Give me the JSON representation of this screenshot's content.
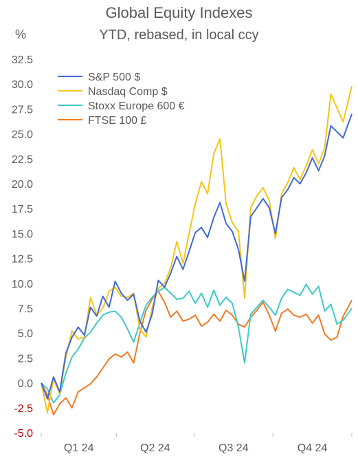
{
  "chart_data": {
    "type": "line",
    "title": "Global Equity Indexes",
    "subtitle": "YTD, rebased, in local ccy",
    "ylabel": "%",
    "ylim": [
      -5,
      32.5
    ],
    "y_ticks": [
      "32.5",
      "30.0",
      "27.5",
      "25.0",
      "22.5",
      "20.0",
      "17.5",
      "15.0",
      "12.5",
      "10.0",
      "7.5",
      "5.0",
      "2.5",
      "0.0",
      "-2.5",
      "-5.0"
    ],
    "y_tick_values": [
      32.5,
      30,
      27.5,
      25,
      22.5,
      20,
      17.5,
      15,
      12.5,
      10,
      7.5,
      5,
      2.5,
      0,
      -2.5,
      -5
    ],
    "negative_tick_color": "#c00000",
    "tick_color": "#595959",
    "x_categories": [
      "Q1 24",
      "Q2 24",
      "Q3 24",
      "Q4 24"
    ],
    "xlim": [
      0,
      252
    ],
    "x_unit": "trading day of 2024",
    "legend_position": "top-left",
    "series": [
      {
        "name": "S&P 500 $",
        "color": "#4169d6",
        "x": [
          0,
          5,
          10,
          15,
          20,
          25,
          30,
          35,
          40,
          45,
          50,
          55,
          60,
          65,
          70,
          75,
          80,
          85,
          90,
          95,
          100,
          105,
          110,
          115,
          120,
          125,
          130,
          135,
          140,
          145,
          150,
          155,
          160,
          165,
          170,
          175,
          180,
          185,
          190,
          195,
          200,
          205,
          210,
          215,
          220,
          225,
          230,
          235,
          240,
          245,
          252
        ],
        "values": [
          0.0,
          -1.6,
          0.6,
          -0.9,
          3.0,
          4.6,
          5.6,
          4.8,
          7.6,
          6.7,
          8.7,
          7.6,
          10.2,
          9.0,
          8.3,
          8.9,
          6.2,
          5.1,
          6.9,
          10.3,
          9.6,
          11.0,
          12.7,
          11.4,
          13.2,
          15.1,
          15.6,
          14.6,
          16.6,
          18.1,
          16.0,
          15.2,
          13.4,
          10.2,
          16.7,
          17.6,
          18.5,
          17.6,
          15.0,
          18.6,
          19.4,
          20.6,
          20.0,
          21.1,
          22.6,
          21.3,
          22.8,
          25.8,
          25.2,
          24.6,
          27.0
        ]
      },
      {
        "name": "Nasdaq Comp $",
        "color": "#f5c518",
        "x": [
          0,
          5,
          10,
          15,
          20,
          25,
          30,
          35,
          40,
          45,
          50,
          55,
          60,
          65,
          70,
          75,
          80,
          85,
          90,
          95,
          100,
          105,
          110,
          115,
          120,
          125,
          130,
          135,
          140,
          145,
          150,
          155,
          160,
          165,
          170,
          175,
          180,
          185,
          190,
          195,
          200,
          205,
          210,
          215,
          220,
          225,
          230,
          235,
          240,
          245,
          252
        ],
        "values": [
          0.0,
          -3.0,
          0.4,
          -1.1,
          2.6,
          5.2,
          4.4,
          4.6,
          8.6,
          6.8,
          7.5,
          9.2,
          9.6,
          8.7,
          8.6,
          9.0,
          5.4,
          4.6,
          7.5,
          9.5,
          10.0,
          11.5,
          14.2,
          12.0,
          15.0,
          18.0,
          20.2,
          19.0,
          23.0,
          24.5,
          18.0,
          16.1,
          15.2,
          8.5,
          17.6,
          18.8,
          19.6,
          18.3,
          14.5,
          19.0,
          20.1,
          21.6,
          20.4,
          21.8,
          23.4,
          22.0,
          23.6,
          29.0,
          27.6,
          26.2,
          29.8
        ]
      },
      {
        "name": "Stoxx Europe 600 €",
        "color": "#3ec9c9",
        "x": [
          0,
          5,
          10,
          15,
          20,
          25,
          30,
          35,
          40,
          45,
          50,
          55,
          60,
          65,
          70,
          75,
          80,
          85,
          90,
          95,
          100,
          105,
          110,
          115,
          120,
          125,
          130,
          135,
          140,
          145,
          150,
          155,
          160,
          165,
          170,
          175,
          180,
          185,
          190,
          195,
          200,
          205,
          210,
          215,
          220,
          225,
          230,
          235,
          240,
          245,
          252
        ],
        "values": [
          0.0,
          -0.6,
          -2.0,
          -1.2,
          1.0,
          2.6,
          3.4,
          4.5,
          5.1,
          6.0,
          6.8,
          7.1,
          7.2,
          6.6,
          5.4,
          4.1,
          6.0,
          7.8,
          8.6,
          9.2,
          9.6,
          9.0,
          8.4,
          8.5,
          9.2,
          8.0,
          9.0,
          7.6,
          9.3,
          7.8,
          8.6,
          8.0,
          5.6,
          2.0,
          6.9,
          7.6,
          8.3,
          7.6,
          6.8,
          8.5,
          9.4,
          9.1,
          8.8,
          9.9,
          8.9,
          9.7,
          7.2,
          7.9,
          5.9,
          6.3,
          7.5
        ]
      },
      {
        "name": "FTSE 100 £",
        "color": "#f07a24",
        "x": [
          0,
          5,
          10,
          15,
          20,
          25,
          30,
          35,
          40,
          45,
          50,
          55,
          60,
          65,
          70,
          75,
          80,
          85,
          90,
          95,
          100,
          105,
          110,
          115,
          120,
          125,
          130,
          135,
          140,
          145,
          150,
          155,
          160,
          165,
          170,
          175,
          180,
          185,
          190,
          195,
          200,
          205,
          210,
          215,
          220,
          225,
          230,
          235,
          240,
          245,
          252
        ],
        "values": [
          0.0,
          -1.2,
          -3.2,
          -2.1,
          -1.5,
          -2.5,
          -0.9,
          -0.5,
          -0.1,
          0.6,
          1.5,
          2.4,
          2.9,
          2.6,
          3.1,
          2.0,
          5.0,
          7.3,
          8.4,
          9.2,
          8.1,
          6.6,
          7.2,
          6.2,
          6.4,
          6.8,
          5.7,
          6.1,
          6.9,
          6.2,
          7.3,
          6.8,
          5.9,
          5.6,
          6.6,
          7.3,
          8.1,
          6.8,
          5.2,
          7.0,
          7.4,
          6.8,
          6.6,
          6.9,
          6.0,
          6.8,
          4.9,
          4.3,
          4.6,
          6.7,
          8.3
        ]
      }
    ]
  }
}
